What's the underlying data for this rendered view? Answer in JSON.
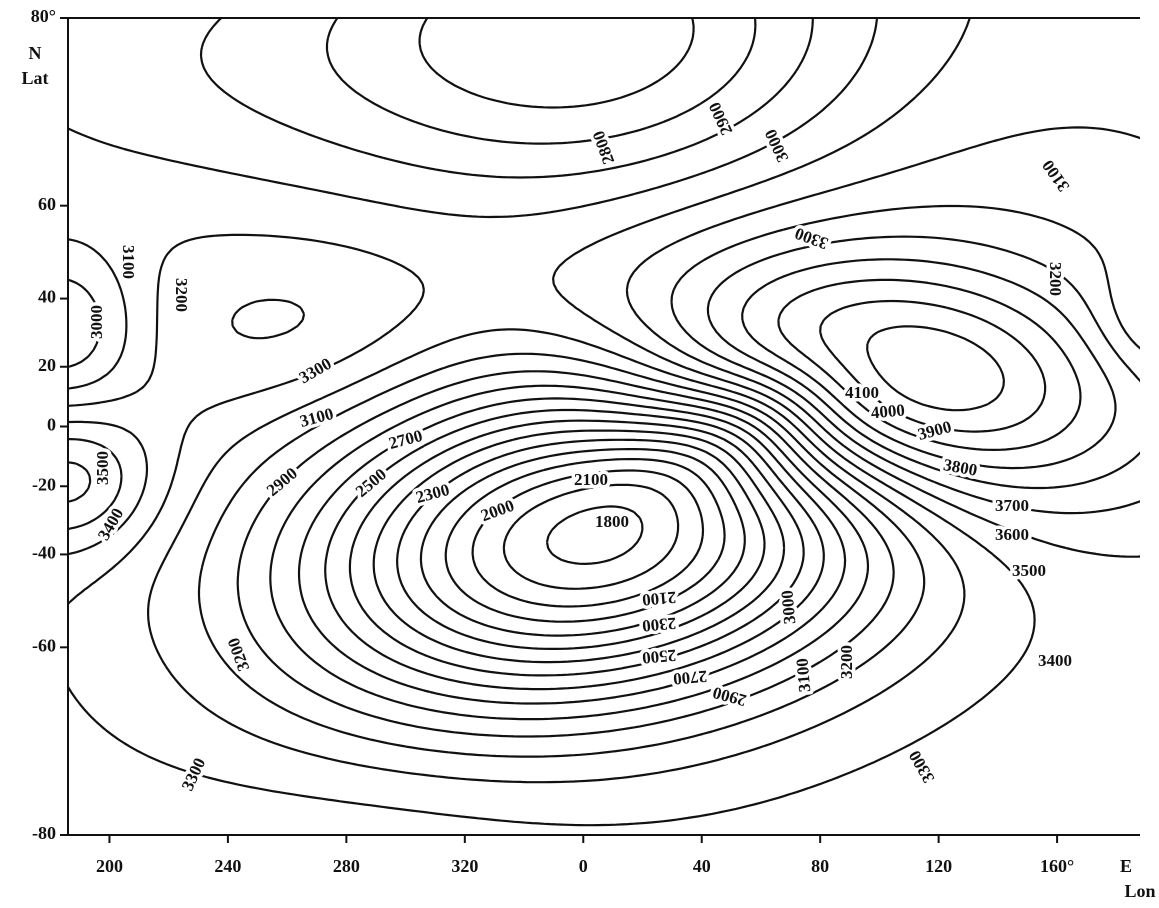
{
  "chart_data": {
    "type": "contour",
    "xlabel_lines": [
      "E",
      "Lon"
    ],
    "ylabel_lines": [
      "N",
      "Lat"
    ],
    "xlim": [
      186,
      548
    ],
    "xticks": [
      200,
      240,
      280,
      320,
      {
        "value": 360,
        "label": "0"
      },
      {
        "value": 400,
        "label": "40"
      },
      {
        "value": 440,
        "label": "80"
      },
      {
        "value": 480,
        "label": "120"
      },
      {
        "value": 520,
        "label": "160°"
      }
    ],
    "ylim": [
      -80,
      80
    ],
    "y_scale": "mercator",
    "yticks": [
      {
        "value": 80,
        "label": "80°"
      },
      60,
      40,
      20,
      0,
      -20,
      -40,
      -60,
      -80
    ],
    "levels": [
      1800,
      1900,
      2000,
      2100,
      2200,
      2300,
      2400,
      2500,
      2600,
      2700,
      2800,
      2900,
      3000,
      3100,
      3200,
      3300,
      3400,
      3500,
      3600,
      3700,
      3800,
      3900,
      4000,
      4100
    ],
    "contour_labels": [
      2800,
      2900,
      3000,
      3100,
      3300,
      3200,
      3100,
      3200,
      3000,
      3300,
      4100,
      4000,
      3900,
      3100,
      2700,
      2900,
      2500,
      3800,
      2300,
      2100,
      3500,
      2000,
      1800,
      3700,
      3400,
      3600,
      3500,
      2100,
      3000,
      2300,
      3200,
      3200,
      2500,
      3100,
      3400,
      2700,
      2900,
      3300,
      3300
    ]
  }
}
